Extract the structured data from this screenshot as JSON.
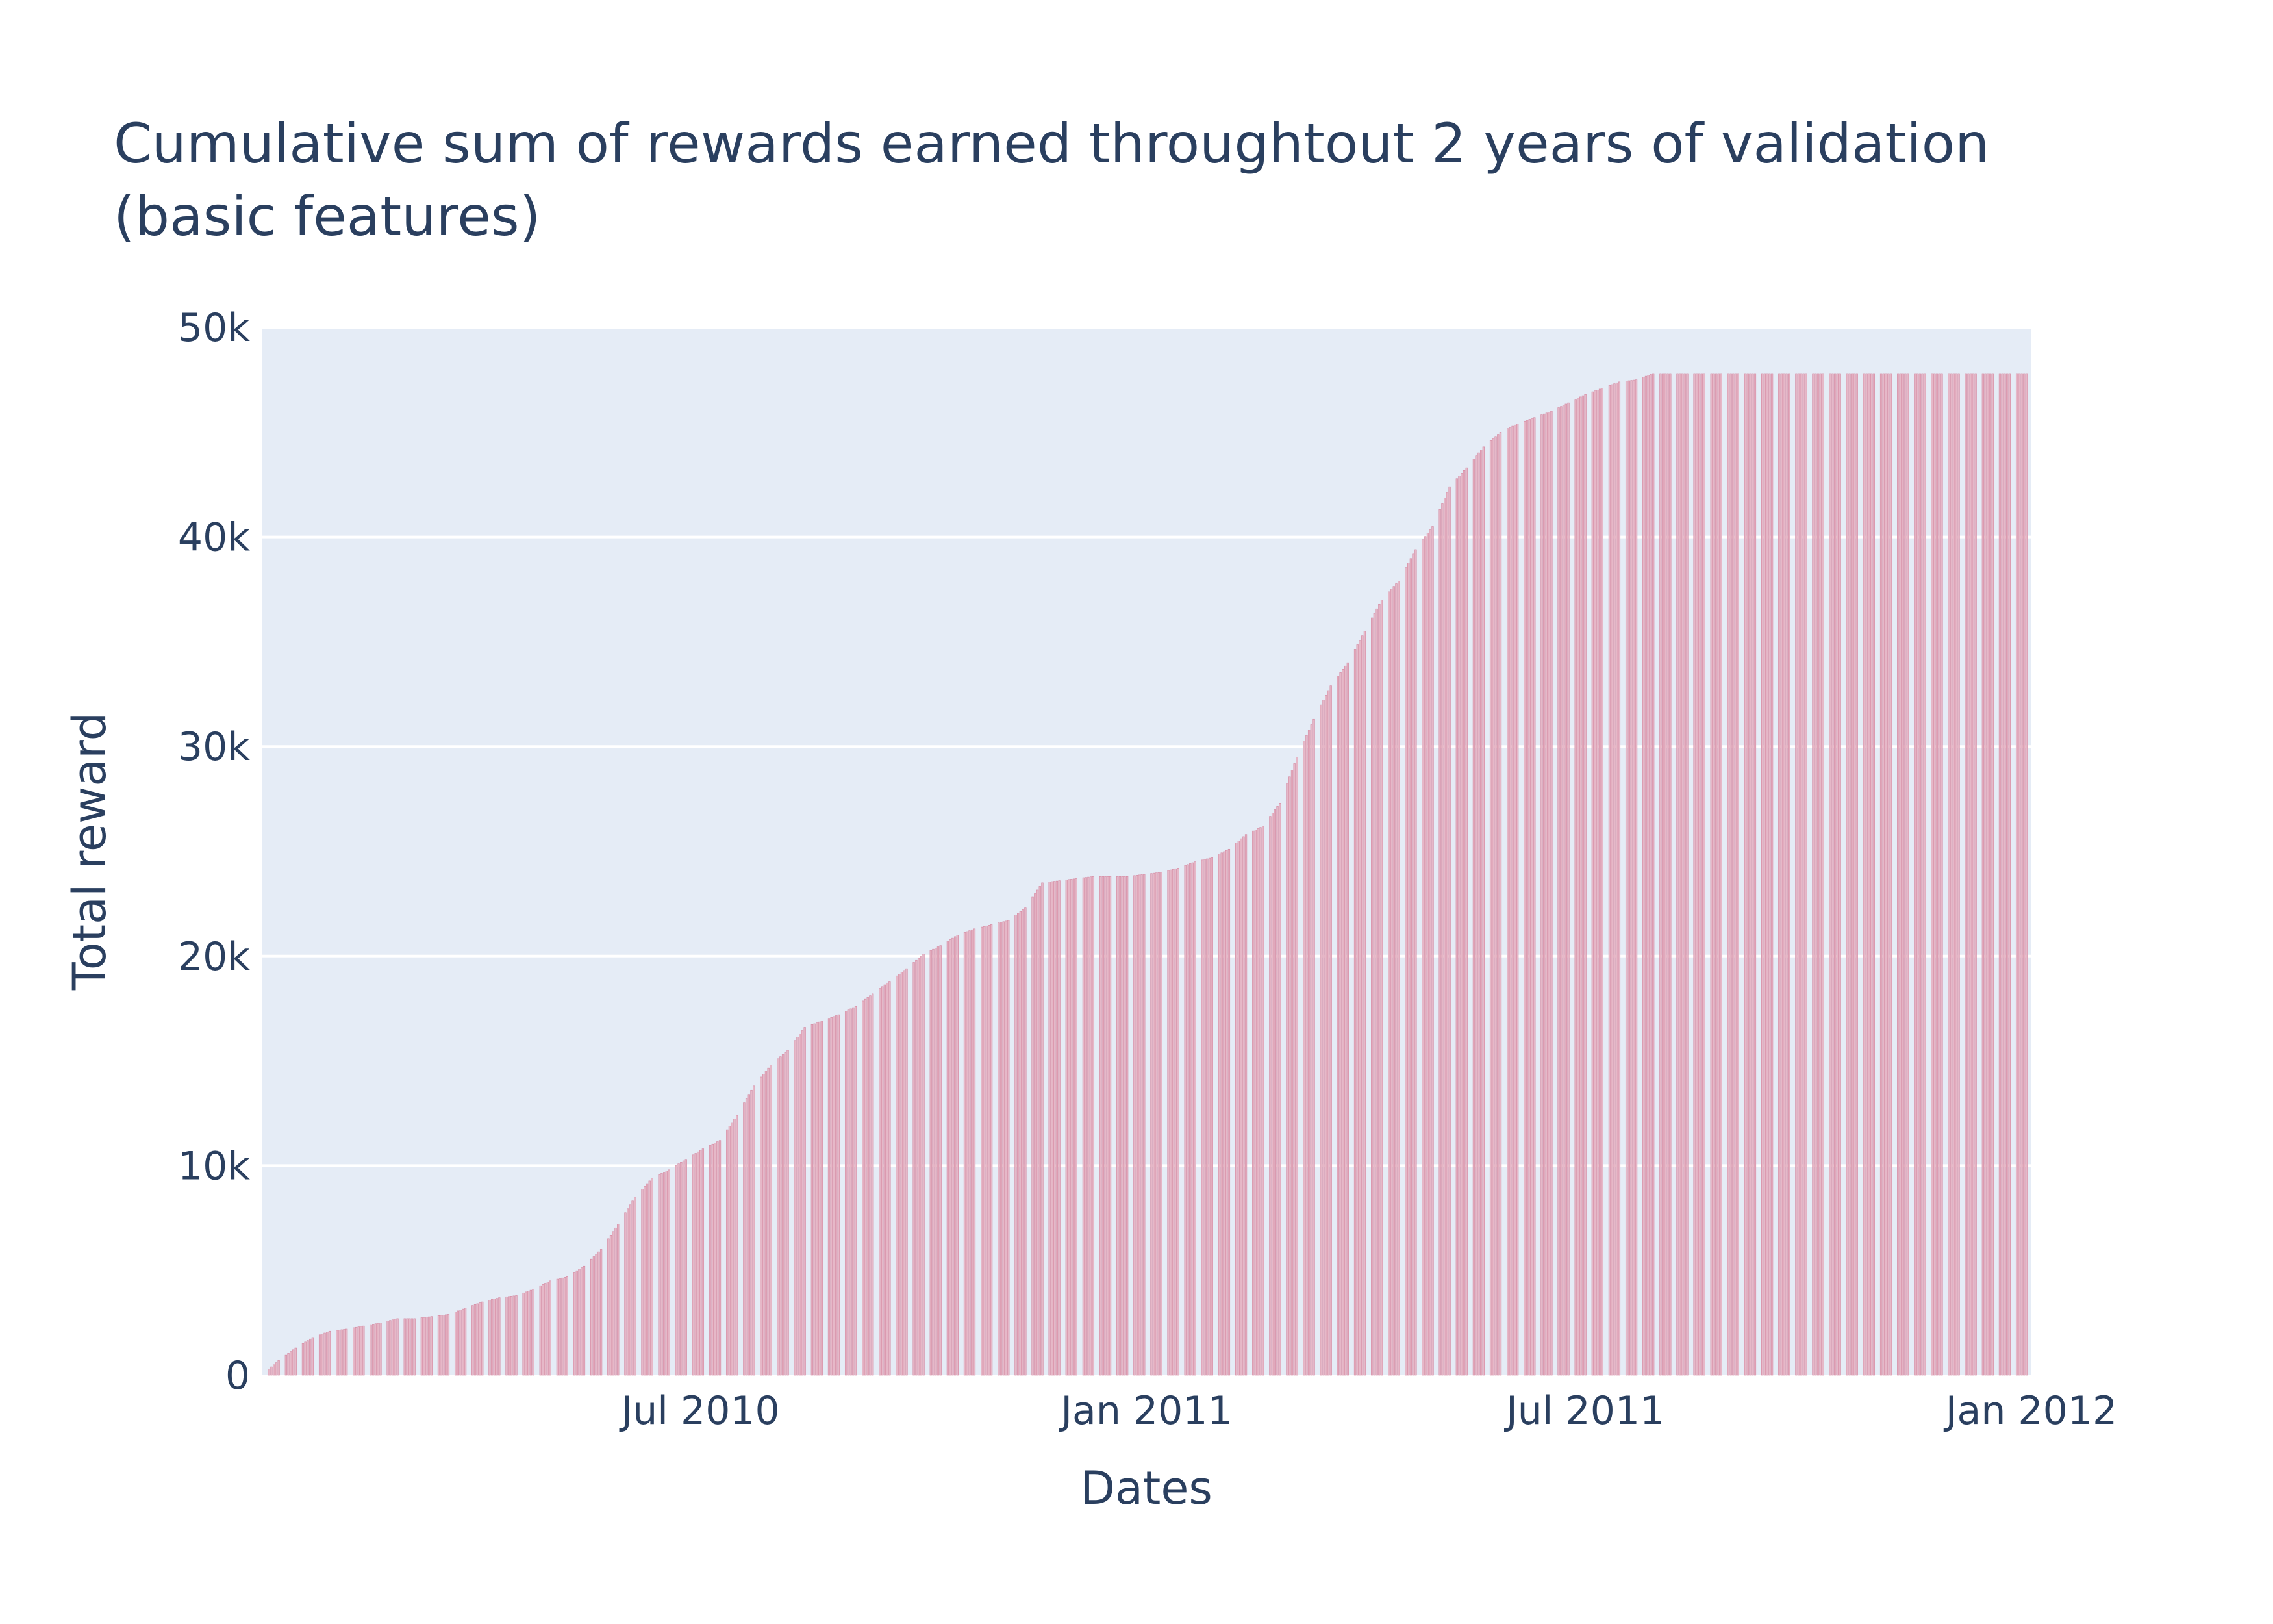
{
  "chart_data": {
    "type": "bar",
    "title_lines": [
      "Cumulative sum of rewards earned throughtout 2 years of validation",
      "(basic features)"
    ],
    "xlabel": "Dates",
    "ylabel": "Total reward",
    "x_range": [
      "2010-01-01",
      "2012-01-01"
    ],
    "x_ticks": [
      {
        "date": "2010-07-01",
        "label": "Jul 2010"
      },
      {
        "date": "2011-01-01",
        "label": "Jan 2011"
      },
      {
        "date": "2011-07-01",
        "label": "Jul 2011"
      },
      {
        "date": "2012-01-01",
        "label": "Jan 2012"
      }
    ],
    "ylim": [
      0,
      50000
    ],
    "y_ticks": [
      {
        "value": 0,
        "label": "0"
      },
      {
        "value": 10000,
        "label": "10k"
      },
      {
        "value": 20000,
        "label": "20k"
      },
      {
        "value": 30000,
        "label": "30k"
      },
      {
        "value": 40000,
        "label": "40k"
      },
      {
        "value": 50000,
        "label": "50k"
      }
    ],
    "grid": true,
    "colors": {
      "plot_background": "#e5ecf6",
      "gridline": "#ffffff",
      "bar_fill": "#e6b8c8",
      "bar_edge": "#d4869f",
      "text": "#2a3f5f"
    },
    "series": [
      {
        "bar_frequency": "business days",
        "dates": [
          "2010-01-01",
          "2010-01-08",
          "2010-01-15",
          "2010-01-22",
          "2010-01-29",
          "2010-02-05",
          "2010-02-12",
          "2010-02-19",
          "2010-02-26",
          "2010-03-05",
          "2010-03-12",
          "2010-03-19",
          "2010-03-26",
          "2010-04-02",
          "2010-04-09",
          "2010-04-16",
          "2010-04-23",
          "2010-04-30",
          "2010-05-07",
          "2010-05-14",
          "2010-05-21",
          "2010-05-28",
          "2010-06-04",
          "2010-06-11",
          "2010-06-18",
          "2010-06-25",
          "2010-07-02",
          "2010-07-09",
          "2010-07-16",
          "2010-07-23",
          "2010-07-30",
          "2010-08-06",
          "2010-08-13",
          "2010-08-20",
          "2010-08-27",
          "2010-09-03",
          "2010-09-10",
          "2010-09-17",
          "2010-09-24",
          "2010-10-01",
          "2010-10-08",
          "2010-10-15",
          "2010-10-22",
          "2010-10-29",
          "2010-11-05",
          "2010-11-12",
          "2010-11-19",
          "2010-11-26",
          "2010-12-03",
          "2010-12-10",
          "2010-12-17",
          "2010-12-24",
          "2010-12-31",
          "2011-01-07",
          "2011-01-14",
          "2011-01-21",
          "2011-01-28",
          "2011-02-04",
          "2011-02-11",
          "2011-02-18",
          "2011-02-25",
          "2011-03-04",
          "2011-03-11",
          "2011-03-18",
          "2011-03-25",
          "2011-04-01",
          "2011-04-08",
          "2011-04-15",
          "2011-04-22",
          "2011-04-29",
          "2011-05-06",
          "2011-05-13",
          "2011-05-20",
          "2011-05-27",
          "2011-06-03",
          "2011-06-10",
          "2011-06-17",
          "2011-06-24",
          "2011-07-01",
          "2011-07-08",
          "2011-07-15",
          "2011-07-22",
          "2011-07-29",
          "2011-08-05",
          "2011-08-12",
          "2011-08-19",
          "2011-08-26",
          "2011-09-02",
          "2011-09-09",
          "2011-09-16",
          "2011-09-23",
          "2011-09-30",
          "2011-10-07",
          "2011-10-14",
          "2011-10-21",
          "2011-10-28",
          "2011-11-04",
          "2011-11-11",
          "2011-11-18",
          "2011-11-25",
          "2011-12-02",
          "2011-12-09",
          "2011-12-16",
          "2011-12-23",
          "2011-12-30"
        ],
        "values": [
          0,
          700,
          1300,
          1800,
          2100,
          2200,
          2350,
          2500,
          2700,
          2700,
          2800,
          2900,
          3200,
          3500,
          3700,
          3800,
          4100,
          4500,
          4700,
          5200,
          6000,
          7200,
          8500,
          9400,
          9800,
          10300,
          10800,
          11200,
          12400,
          13800,
          14800,
          15500,
          16600,
          16900,
          17200,
          17600,
          18200,
          18800,
          19400,
          20100,
          20500,
          21000,
          21300,
          21500,
          21700,
          22300,
          23500,
          23600,
          23700,
          23800,
          23800,
          23800,
          23900,
          24000,
          24200,
          24500,
          24700,
          25100,
          25800,
          26200,
          27300,
          29500,
          31300,
          32900,
          34000,
          35500,
          37000,
          37900,
          39400,
          40500,
          42400,
          43300,
          44300,
          45000,
          45400,
          45700,
          46000,
          46400,
          46800,
          47100,
          47400,
          47500,
          47800,
          47800,
          47800,
          47800,
          47800,
          47800,
          47800,
          47800,
          47800,
          47800,
          47800,
          47800,
          47800,
          47800,
          47800,
          47800,
          47800,
          47800,
          47800,
          47800,
          47800,
          47800,
          47800
        ]
      }
    ]
  }
}
